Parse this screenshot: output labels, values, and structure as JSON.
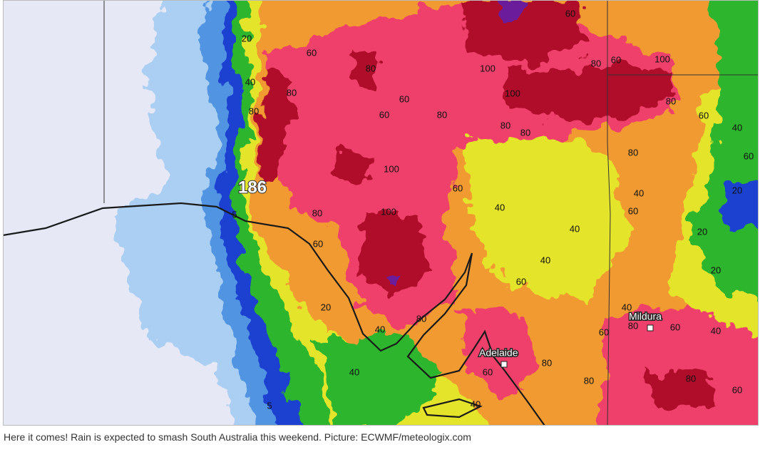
{
  "map": {
    "peak_label": "186",
    "cities": [
      "Adelaide",
      "Mildura"
    ],
    "contour_labels": [
      "20",
      "60",
      "80",
      "40",
      "80",
      "60",
      "80",
      "60",
      "80",
      "100",
      "100",
      "80",
      "80",
      "60",
      "80",
      "60",
      "100",
      "80",
      "60",
      "40",
      "60",
      "80",
      "100",
      "60",
      "40",
      "40",
      "40",
      "60",
      "20",
      "20",
      "20",
      "100",
      "80",
      "60",
      "40",
      "60",
      "20",
      "80",
      "40",
      "40",
      "80",
      "60",
      "60",
      "40",
      "40",
      "60",
      "80",
      "80",
      "60",
      "80",
      "40",
      "5",
      "5"
    ]
  },
  "caption": "Here it comes! Rain is expected to smash South Australia this weekend. Picture: ECWMF/meteologix.com"
}
